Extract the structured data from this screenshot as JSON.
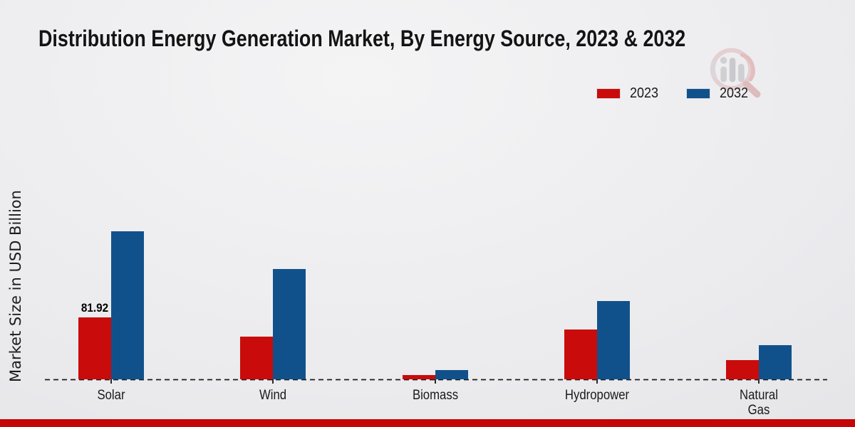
{
  "page": {
    "background_light": "#f4f4f5",
    "background_dark": "#e0e0e3",
    "footer_bar_color": "#c40606",
    "text_color": "#141414"
  },
  "header": {
    "title": "Distribution Energy Generation Market, By Energy Source, 2023 & 2032"
  },
  "legend": {
    "items": [
      {
        "label": "2023",
        "color": "#c90b0b"
      },
      {
        "label": "2032",
        "color": "#11518b"
      }
    ]
  },
  "icons": {
    "watermark": "magnifier-bar-chart-logo"
  },
  "chart_data": {
    "type": "bar",
    "title": "Distribution Energy Generation Market, By Energy Source, 2023 & 2032",
    "xlabel": "",
    "ylabel": "Market Size in USD Billion",
    "categories": [
      "Solar",
      "Wind",
      "Biomass",
      "Hydropower",
      "Natural Gas"
    ],
    "category_display": [
      "Solar",
      "Wind",
      "Biomass",
      "Hydropower",
      "Natural\nGas"
    ],
    "series": [
      {
        "name": "2023",
        "color": "#c90b0b",
        "values": [
          81.92,
          56.2,
          5.9,
          65.6,
          25.7
        ]
      },
      {
        "name": "2032",
        "color": "#11518b",
        "values": [
          195.9,
          146.2,
          12.2,
          103.3,
          45.2
        ]
      }
    ],
    "annotations": [
      {
        "category": "Solar",
        "series": "2023",
        "text": "81.92"
      }
    ],
    "ylim": [
      0,
      210
    ],
    "grid": false,
    "y_axis_ticks_visible": false,
    "baseline_style": "dashed",
    "legend_position": "top-right"
  }
}
